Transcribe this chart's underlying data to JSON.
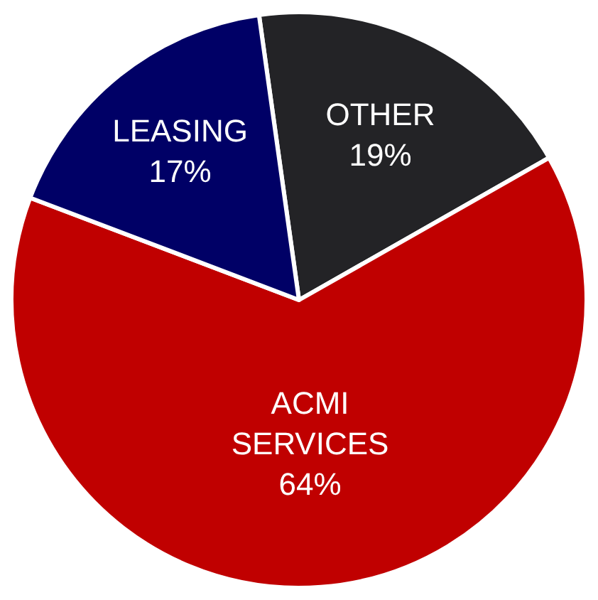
{
  "chart_data": {
    "type": "pie",
    "categories": [
      "OTHER",
      "ACMI SERVICES",
      "LEASING"
    ],
    "values": [
      19,
      64,
      17
    ],
    "value_labels": [
      "19%",
      "64%",
      "17%"
    ],
    "colors": [
      "#232326",
      "#c00000",
      "#000066"
    ],
    "legend": false
  }
}
